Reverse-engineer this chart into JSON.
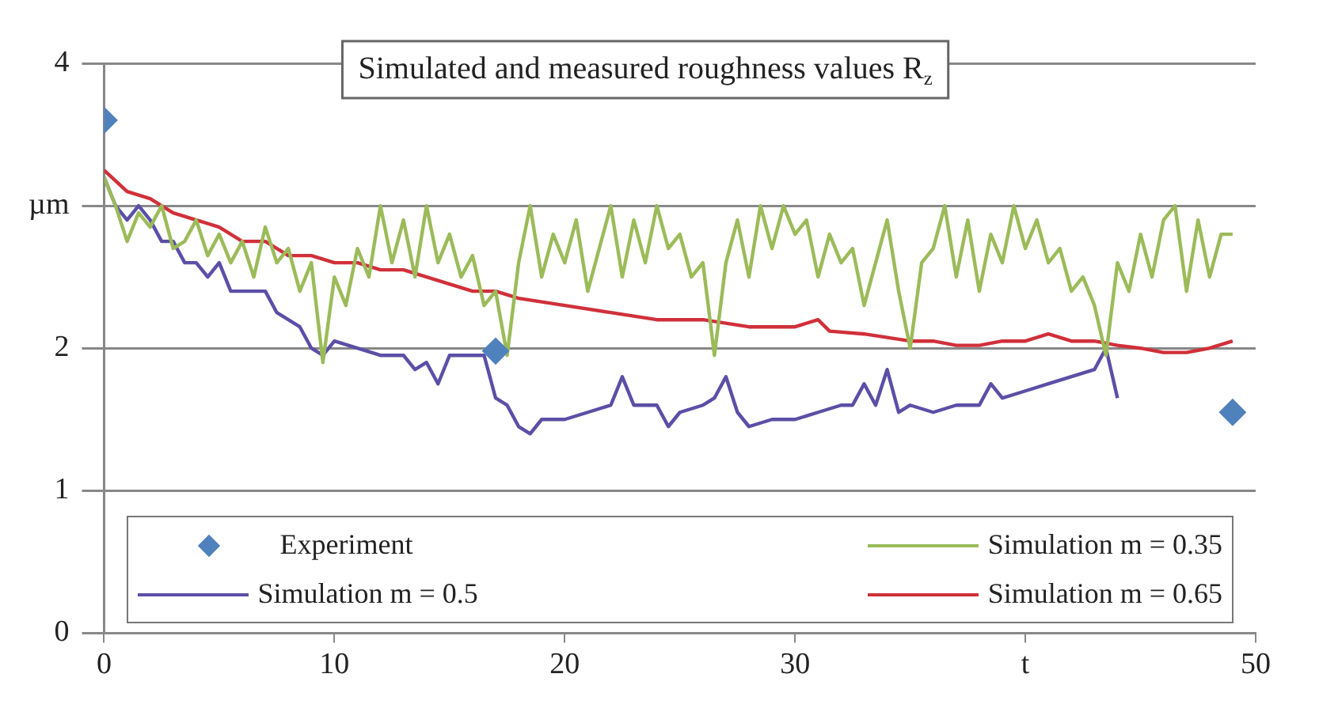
{
  "chart_data": {
    "type": "line",
    "title": "Simulated and measured roughness values R$_{z}$",
    "xlim": [
      0,
      50
    ],
    "xticks": [
      0,
      10,
      20,
      30,
      {
        "value": 40,
        "label": "t"
      },
      50
    ],
    "ylim": [
      0,
      4
    ],
    "yticks": [
      0,
      1,
      2,
      {
        "value": 3,
        "label": "µm"
      },
      4
    ],
    "grid": "y",
    "legend": "bottom",
    "marker": "none",
    "line_style": "solid",
    "series": [
      {
        "name": "Experiment",
        "type": "scatter",
        "marker": "diamond",
        "color": "#4f81bd",
        "x": [
          0,
          17,
          49
        ],
        "values": [
          3.6,
          1.98,
          1.55
        ]
      },
      {
        "name": "Simulation m = 0.35",
        "color": "#9bbb59",
        "x": [
          0,
          0.5,
          1,
          1.5,
          2,
          2.5,
          3,
          3.5,
          4,
          4.5,
          5,
          5.5,
          6,
          6.5,
          7,
          7.5,
          8,
          8.5,
          9,
          9.5,
          10,
          10.5,
          11,
          11.5,
          12,
          12.5,
          13,
          13.5,
          14,
          14.5,
          15,
          15.5,
          16,
          16.5,
          17,
          17.5,
          18,
          18.5,
          19,
          19.5,
          20,
          20.5,
          21,
          21.5,
          22,
          22.5,
          23,
          23.5,
          24,
          24.5,
          25,
          25.5,
          26,
          26.5,
          27,
          27.5,
          28,
          28.5,
          29,
          29.5,
          30,
          30.5,
          31,
          31.5,
          32,
          32.5,
          33,
          33.5,
          34,
          34.5,
          35,
          35.5,
          36,
          36.5,
          37,
          37.5,
          38,
          38.5,
          39,
          39.5,
          40,
          40.5,
          41,
          41.5,
          42,
          42.5,
          43,
          43.5,
          44,
          44.5,
          45,
          45.5,
          46,
          46.5,
          47,
          47.5,
          48,
          48.5,
          49
        ],
        "values": [
          3.2,
          3.0,
          2.75,
          2.95,
          2.85,
          3.0,
          2.7,
          2.75,
          2.9,
          2.65,
          2.8,
          2.6,
          2.75,
          2.5,
          2.85,
          2.6,
          2.7,
          2.4,
          2.6,
          1.9,
          2.5,
          2.3,
          2.7,
          2.5,
          3.0,
          2.6,
          2.9,
          2.5,
          3.0,
          2.6,
          2.8,
          2.5,
          2.65,
          2.3,
          2.4,
          1.95,
          2.6,
          3.0,
          2.5,
          2.8,
          2.6,
          2.9,
          2.4,
          2.7,
          3.0,
          2.5,
          2.9,
          2.6,
          3.0,
          2.7,
          2.8,
          2.5,
          2.6,
          1.95,
          2.6,
          2.9,
          2.5,
          3.0,
          2.7,
          3.0,
          2.8,
          2.9,
          2.5,
          2.8,
          2.6,
          2.7,
          2.3,
          2.6,
          2.9,
          2.4,
          2.0,
          2.6,
          2.7,
          3.0,
          2.5,
          2.9,
          2.4,
          2.8,
          2.6,
          3.0,
          2.7,
          2.9,
          2.6,
          2.7,
          2.4,
          2.5,
          2.3,
          1.95,
          2.6,
          2.4,
          2.8,
          2.5,
          2.9,
          3.0,
          2.4,
          2.9,
          2.5,
          2.8,
          2.8
        ]
      },
      {
        "name": "Simulation m = 0.5",
        "color": "#5b4fa6",
        "x": [
          0,
          0.5,
          1,
          1.5,
          2,
          2.5,
          3,
          3.5,
          4,
          4.5,
          5,
          5.5,
          6,
          7,
          7.5,
          8,
          8.5,
          9,
          9.5,
          10,
          11,
          12,
          13,
          13.5,
          14,
          14.5,
          15,
          16,
          16.5,
          17,
          17.5,
          18,
          18.5,
          19,
          20,
          21,
          22,
          22.5,
          23,
          24,
          24.5,
          25,
          26,
          26.5,
          27,
          27.5,
          28,
          29,
          30,
          31,
          32,
          32.5,
          33,
          33.5,
          34,
          34.5,
          35,
          36,
          37,
          38,
          38.5,
          39,
          40,
          41,
          42,
          43,
          43.5,
          44
        ],
        "values": [
          3.2,
          3.0,
          2.9,
          3.0,
          2.9,
          2.75,
          2.75,
          2.6,
          2.6,
          2.5,
          2.6,
          2.4,
          2.4,
          2.4,
          2.25,
          2.2,
          2.15,
          2.0,
          1.95,
          2.05,
          2.0,
          1.95,
          1.95,
          1.85,
          1.9,
          1.75,
          1.95,
          1.95,
          1.95,
          1.65,
          1.6,
          1.45,
          1.4,
          1.5,
          1.5,
          1.55,
          1.6,
          1.8,
          1.6,
          1.6,
          1.45,
          1.55,
          1.6,
          1.65,
          1.8,
          1.55,
          1.45,
          1.5,
          1.5,
          1.55,
          1.6,
          1.6,
          1.75,
          1.6,
          1.85,
          1.55,
          1.6,
          1.55,
          1.6,
          1.6,
          1.75,
          1.65,
          1.7,
          1.75,
          1.8,
          1.85,
          2.0,
          1.65
        ]
      },
      {
        "name": "Simulation m = 0.65",
        "color": "#d0303a",
        "x": [
          0,
          1,
          2,
          3,
          4,
          5,
          6,
          7,
          8,
          9,
          10,
          11,
          12,
          13,
          14,
          15,
          16,
          17,
          18,
          20,
          22,
          24,
          26,
          28,
          30,
          31,
          31.5,
          33,
          35,
          36,
          37,
          38,
          39,
          40,
          41,
          42,
          43,
          44,
          45,
          46,
          47,
          48,
          49
        ],
        "values": [
          3.25,
          3.1,
          3.05,
          2.95,
          2.9,
          2.85,
          2.75,
          2.75,
          2.65,
          2.65,
          2.6,
          2.6,
          2.55,
          2.55,
          2.5,
          2.45,
          2.4,
          2.4,
          2.35,
          2.3,
          2.25,
          2.2,
          2.2,
          2.15,
          2.15,
          2.2,
          2.12,
          2.1,
          2.05,
          2.05,
          2.02,
          2.02,
          2.05,
          2.05,
          2.1,
          2.05,
          2.05,
          2.02,
          2.0,
          1.97,
          1.97,
          2.0,
          2.05
        ]
      }
    ]
  }
}
